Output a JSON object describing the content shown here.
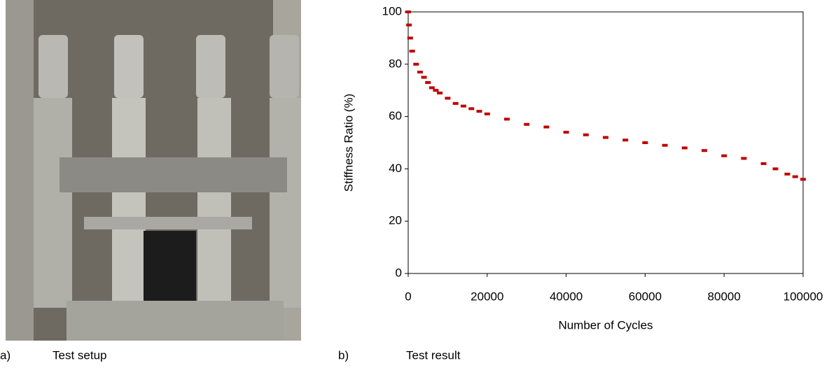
{
  "captions": [
    {
      "label": "a)",
      "text": "Test setup"
    },
    {
      "label": "b)",
      "text": "Test result"
    }
  ],
  "chart_data": {
    "type": "scatter",
    "xlabel": "Number of Cycles",
    "ylabel": "Stiffness Ratio (%)",
    "xlim": [
      0,
      100000
    ],
    "ylim": [
      0,
      100
    ],
    "xticks": [
      0,
      20000,
      40000,
      60000,
      80000,
      100000
    ],
    "yticks": [
      0,
      20,
      40,
      60,
      80,
      100
    ],
    "grid": false,
    "series": [
      {
        "color": "#c00000",
        "x": [
          0,
          200,
          500,
          1000,
          2000,
          3000,
          4000,
          5000,
          6000,
          7000,
          8000,
          10000,
          12000,
          14000,
          16000,
          18000,
          20000,
          25000,
          30000,
          35000,
          40000,
          45000,
          50000,
          55000,
          60000,
          65000,
          70000,
          75000,
          80000,
          85000,
          90000,
          93000,
          96000,
          98000,
          100000
        ],
        "values": [
          100,
          95,
          90,
          85,
          80,
          77,
          75,
          73,
          71,
          70,
          69,
          67,
          65,
          64,
          63,
          62,
          61,
          59,
          57,
          56,
          54,
          53,
          52,
          51,
          50,
          49,
          48,
          47,
          45,
          44,
          42,
          40,
          38,
          37,
          36
        ]
      }
    ]
  }
}
